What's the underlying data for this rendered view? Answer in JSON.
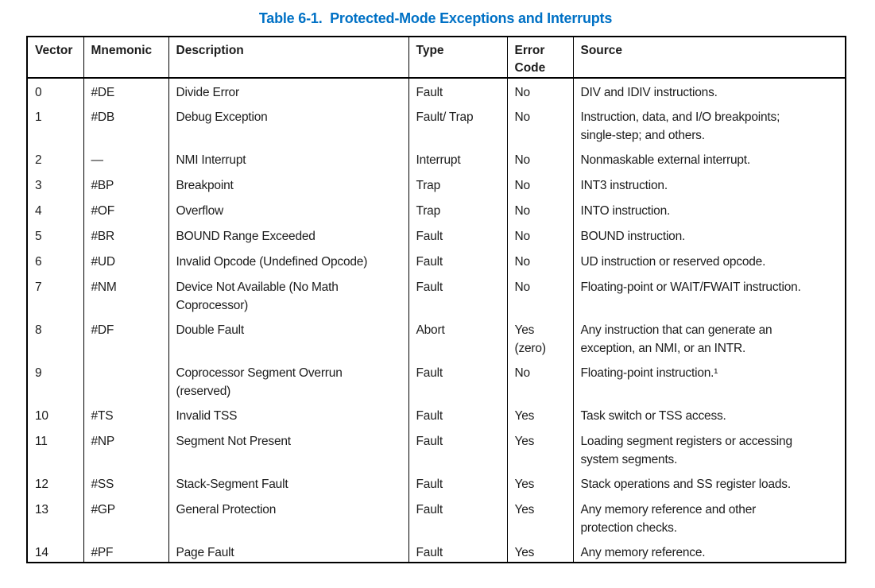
{
  "title": "Table 6-1.  Protected-Mode Exceptions and Interrupts",
  "title_color": "#0071c5",
  "colors": {
    "page_background": "#ffffff",
    "border": "#000000",
    "body_text": "#1c1c1c"
  },
  "table": {
    "headers": [
      "Vector",
      "Mnemonic",
      "Description",
      "Type",
      "Error\nCode",
      "Source"
    ],
    "rows": [
      {
        "vector": "0",
        "mnemonic": "#DE",
        "description": "Divide Error",
        "type": "Fault",
        "error_code": "No",
        "source": "DIV and IDIV instructions."
      },
      {
        "vector": "1",
        "mnemonic": "#DB",
        "description": "Debug Exception",
        "type": "Fault/ Trap",
        "error_code": "No",
        "source": "Instruction, data, and I/O breakpoints;\nsingle-step; and others."
      },
      {
        "vector": "2",
        "mnemonic": "—",
        "description": "NMI Interrupt",
        "type": "Interrupt",
        "error_code": "No",
        "source": "Nonmaskable external interrupt."
      },
      {
        "vector": "3",
        "mnemonic": "#BP",
        "description": "Breakpoint",
        "type": "Trap",
        "error_code": "No",
        "source": "INT3 instruction."
      },
      {
        "vector": "4",
        "mnemonic": "#OF",
        "description": "Overflow",
        "type": "Trap",
        "error_code": "No",
        "source": "INTO instruction."
      },
      {
        "vector": "5",
        "mnemonic": "#BR",
        "description": "BOUND Range Exceeded",
        "type": "Fault",
        "error_code": "No",
        "source": "BOUND instruction."
      },
      {
        "vector": "6",
        "mnemonic": "#UD",
        "description": "Invalid Opcode (Undefined Opcode)",
        "type": "Fault",
        "error_code": "No",
        "source": "UD instruction or reserved opcode."
      },
      {
        "vector": "7",
        "mnemonic": "#NM",
        "description": "Device Not Available (No Math\nCoprocessor)",
        "type": "Fault",
        "error_code": "No",
        "source": "Floating-point or WAIT/FWAIT instruction."
      },
      {
        "vector": "8",
        "mnemonic": "#DF",
        "description": "Double Fault",
        "type": "Abort",
        "error_code": "Yes\n(zero)",
        "source": "Any instruction that can generate an\nexception, an NMI, or an INTR."
      },
      {
        "vector": "9",
        "mnemonic": "",
        "description": "Coprocessor Segment Overrun\n(reserved)",
        "type": "Fault",
        "error_code": "No",
        "source": "Floating-point instruction.¹"
      },
      {
        "vector": "10",
        "mnemonic": "#TS",
        "description": "Invalid TSS",
        "type": "Fault",
        "error_code": "Yes",
        "source": "Task switch or TSS access."
      },
      {
        "vector": "11",
        "mnemonic": "#NP",
        "description": "Segment Not Present",
        "type": "Fault",
        "error_code": "Yes",
        "source": "Loading segment registers or accessing\nsystem segments."
      },
      {
        "vector": "12",
        "mnemonic": "#SS",
        "description": "Stack-Segment Fault",
        "type": "Fault",
        "error_code": "Yes",
        "source": "Stack operations and SS register loads."
      },
      {
        "vector": "13",
        "mnemonic": "#GP",
        "description": "General Protection",
        "type": "Fault",
        "error_code": "Yes",
        "source": "Any memory reference and other\nprotection checks."
      },
      {
        "vector": "14",
        "mnemonic": "#PF",
        "description": "Page Fault",
        "type": "Fault",
        "error_code": "Yes",
        "source": "Any memory reference."
      }
    ]
  }
}
